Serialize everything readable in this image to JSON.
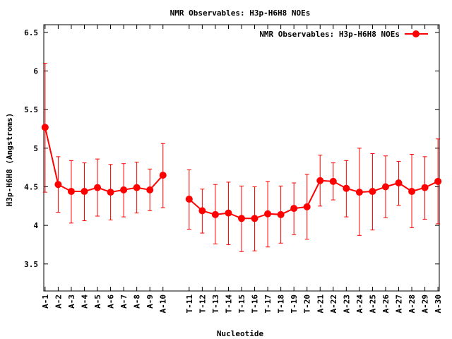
{
  "chart_data": {
    "type": "line",
    "title": "NMR Observables: H3p-H6H8 NOEs",
    "xlabel": "Nucleotide",
    "ylabel": "H3p-H6H8 (Angstroms)",
    "ylim": [
      3.15,
      6.6
    ],
    "yticks": [
      "3.5",
      "4",
      "4.5",
      "5",
      "5.5",
      "6",
      "6.5"
    ],
    "legend_position": "top-right",
    "grid": false,
    "series": [
      {
        "name": "NMR Observables: H3p-H6H8 NOEs",
        "color": "#ff0000",
        "segments": [
          [
            {
              "x": 1,
              "label": "A-1",
              "y": 5.27,
              "low": 4.43,
              "high": 6.1
            },
            {
              "x": 2,
              "label": "A-2",
              "y": 4.53,
              "low": 4.17,
              "high": 4.89
            },
            {
              "x": 3,
              "label": "A-3",
              "y": 4.44,
              "low": 4.03,
              "high": 4.84
            },
            {
              "x": 4,
              "label": "A-4",
              "y": 4.44,
              "low": 4.06,
              "high": 4.81
            },
            {
              "x": 5,
              "label": "A-5",
              "y": 4.49,
              "low": 4.12,
              "high": 4.86
            },
            {
              "x": 6,
              "label": "A-6",
              "y": 4.43,
              "low": 4.07,
              "high": 4.79
            },
            {
              "x": 7,
              "label": "A-7",
              "y": 4.46,
              "low": 4.11,
              "high": 4.8
            },
            {
              "x": 8,
              "label": "A-8",
              "y": 4.49,
              "low": 4.16,
              "high": 4.82
            },
            {
              "x": 9,
              "label": "A-9",
              "y": 4.46,
              "low": 4.19,
              "high": 4.73
            },
            {
              "x": 10,
              "label": "A-10",
              "y": 4.65,
              "low": 4.23,
              "high": 5.06
            }
          ],
          [
            {
              "x": 12,
              "label": "T-11",
              "y": 4.34,
              "low": 3.95,
              "high": 4.72
            },
            {
              "x": 13,
              "label": "T-12",
              "y": 4.19,
              "low": 3.9,
              "high": 4.47
            },
            {
              "x": 14,
              "label": "T-13",
              "y": 4.14,
              "low": 3.76,
              "high": 4.53
            },
            {
              "x": 15,
              "label": "T-14",
              "y": 4.16,
              "low": 3.75,
              "high": 4.56
            },
            {
              "x": 16,
              "label": "T-15",
              "y": 4.09,
              "low": 3.66,
              "high": 4.51
            },
            {
              "x": 17,
              "label": "T-16",
              "y": 4.09,
              "low": 3.67,
              "high": 4.5
            },
            {
              "x": 18,
              "label": "T-17",
              "y": 4.15,
              "low": 3.72,
              "high": 4.57
            },
            {
              "x": 19,
              "label": "T-18",
              "y": 4.14,
              "low": 3.77,
              "high": 4.51
            },
            {
              "x": 20,
              "label": "T-19",
              "y": 4.22,
              "low": 3.88,
              "high": 4.55
            },
            {
              "x": 21,
              "label": "T-20",
              "y": 4.24,
              "low": 3.82,
              "high": 4.66
            },
            {
              "x": 22,
              "label": "A-21",
              "y": 4.58,
              "low": 4.25,
              "high": 4.91
            },
            {
              "x": 23,
              "label": "A-22",
              "y": 4.57,
              "low": 4.33,
              "high": 4.81
            },
            {
              "x": 24,
              "label": "A-23",
              "y": 4.48,
              "low": 4.11,
              "high": 4.84
            },
            {
              "x": 25,
              "label": "A-24",
              "y": 4.43,
              "low": 3.87,
              "high": 5.0
            },
            {
              "x": 26,
              "label": "A-25",
              "y": 4.44,
              "low": 3.94,
              "high": 4.93
            },
            {
              "x": 27,
              "label": "A-26",
              "y": 4.5,
              "low": 4.1,
              "high": 4.9
            },
            {
              "x": 28,
              "label": "A-27",
              "y": 4.55,
              "low": 4.26,
              "high": 4.83
            },
            {
              "x": 29,
              "label": "A-28",
              "y": 4.44,
              "low": 3.97,
              "high": 4.92
            },
            {
              "x": 30,
              "label": "A-29",
              "y": 4.49,
              "low": 4.08,
              "high": 4.89
            },
            {
              "x": 31,
              "label": "A-30",
              "y": 4.57,
              "low": 4.02,
              "high": 5.12
            }
          ]
        ]
      }
    ]
  }
}
